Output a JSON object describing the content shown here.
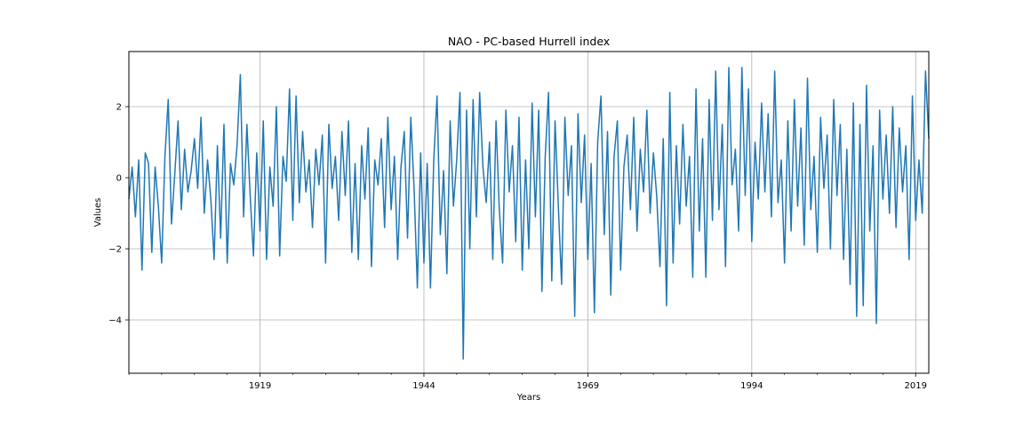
{
  "chart_data": {
    "type": "line",
    "title": "NAO - PC-based Hurrell index",
    "xlabel": "Years",
    "ylabel": "Values",
    "xlim": [
      1899,
      2021
    ],
    "ylim": [
      -5.5,
      3.55
    ],
    "x_ticks": [
      1919,
      1944,
      1969,
      1994,
      2019
    ],
    "x_tick_labels": [
      "1919",
      "1944",
      "1969",
      "1994",
      "2019"
    ],
    "y_ticks": [
      -4,
      -2,
      0,
      2
    ],
    "y_tick_labels": [
      "−4",
      "−2",
      "0",
      "2"
    ],
    "grid": true,
    "legend": "none",
    "line_color": "#1f77b4",
    "x": [
      1899.0,
      1899.5,
      1900.0,
      1900.5,
      1901.0,
      1901.5,
      1902.0,
      1902.5,
      1903.0,
      1903.5,
      1904.0,
      1904.5,
      1905.0,
      1905.5,
      1906.0,
      1906.5,
      1907.0,
      1907.5,
      1908.0,
      1908.5,
      1909.0,
      1909.5,
      1910.0,
      1910.5,
      1911.0,
      1911.5,
      1912.0,
      1912.5,
      1913.0,
      1913.5,
      1914.0,
      1914.5,
      1915.0,
      1915.5,
      1916.0,
      1916.5,
      1917.0,
      1917.5,
      1918.0,
      1918.5,
      1919.0,
      1919.5,
      1920.0,
      1920.5,
      1921.0,
      1921.5,
      1922.0,
      1922.5,
      1923.0,
      1923.5,
      1924.0,
      1924.5,
      1925.0,
      1925.5,
      1926.0,
      1926.5,
      1927.0,
      1927.5,
      1928.0,
      1928.5,
      1929.0,
      1929.5,
      1930.0,
      1930.5,
      1931.0,
      1931.5,
      1932.0,
      1932.5,
      1933.0,
      1933.5,
      1934.0,
      1934.5,
      1935.0,
      1935.5,
      1936.0,
      1936.5,
      1937.0,
      1937.5,
      1938.0,
      1938.5,
      1939.0,
      1939.5,
      1940.0,
      1940.5,
      1941.0,
      1941.5,
      1942.0,
      1942.5,
      1943.0,
      1943.5,
      1944.0,
      1944.5,
      1945.0,
      1945.5,
      1946.0,
      1946.5,
      1947.0,
      1947.5,
      1948.0,
      1948.5,
      1949.0,
      1949.5,
      1950.0,
      1950.5,
      1951.0,
      1951.5,
      1952.0,
      1952.5,
      1953.0,
      1953.5,
      1954.0,
      1954.5,
      1955.0,
      1955.5,
      1956.0,
      1956.5,
      1957.0,
      1957.5,
      1958.0,
      1958.5,
      1959.0,
      1959.5,
      1960.0,
      1960.5,
      1961.0,
      1961.5,
      1962.0,
      1962.5,
      1963.0,
      1963.5,
      1964.0,
      1964.5,
      1965.0,
      1965.5,
      1966.0,
      1966.5,
      1967.0,
      1967.5,
      1968.0,
      1968.5,
      1969.0,
      1969.5,
      1970.0,
      1970.5,
      1971.0,
      1971.5,
      1972.0,
      1972.5,
      1973.0,
      1973.5,
      1974.0,
      1974.5,
      1975.0,
      1975.5,
      1976.0,
      1976.5,
      1977.0,
      1977.5,
      1978.0,
      1978.5,
      1979.0,
      1979.5,
      1980.0,
      1980.5,
      1981.0,
      1981.5,
      1982.0,
      1982.5,
      1983.0,
      1983.5,
      1984.0,
      1984.5,
      1985.0,
      1985.5,
      1986.0,
      1986.5,
      1987.0,
      1987.5,
      1988.0,
      1988.5,
      1989.0,
      1989.5,
      1990.0,
      1990.5,
      1991.0,
      1991.5,
      1992.0,
      1992.5,
      1993.0,
      1993.5,
      1994.0,
      1994.5,
      1995.0,
      1995.5,
      1996.0,
      1996.5,
      1997.0,
      1997.5,
      1998.0,
      1998.5,
      1999.0,
      1999.5,
      2000.0,
      2000.5,
      2001.0,
      2001.5,
      2002.0,
      2002.5,
      2003.0,
      2003.5,
      2004.0,
      2004.5,
      2005.0,
      2005.5,
      2006.0,
      2006.5,
      2007.0,
      2007.5,
      2008.0,
      2008.5,
      2009.0,
      2009.5,
      2010.0,
      2010.5,
      2011.0,
      2011.5,
      2012.0,
      2012.5,
      2013.0,
      2013.5,
      2014.0,
      2014.5,
      2015.0,
      2015.5,
      2016.0,
      2016.5,
      2017.0,
      2017.5,
      2018.0,
      2018.5,
      2019.0,
      2019.5,
      2020.0,
      2020.5,
      2021.0
    ],
    "values": [
      -0.6,
      0.3,
      -1.1,
      0.5,
      -2.6,
      0.7,
      0.4,
      -2.1,
      0.3,
      -0.8,
      -2.4,
      0.6,
      2.2,
      -1.3,
      0.1,
      1.6,
      -0.9,
      0.8,
      -0.4,
      0.2,
      1.1,
      -0.3,
      1.7,
      -1.0,
      0.5,
      -0.6,
      -2.3,
      0.9,
      -1.7,
      1.5,
      -2.4,
      0.4,
      -0.2,
      0.9,
      2.9,
      -1.1,
      1.5,
      -0.5,
      -2.2,
      0.7,
      -1.5,
      1.6,
      -2.3,
      0.3,
      -0.8,
      2.0,
      -2.2,
      0.6,
      -0.1,
      2.5,
      -1.2,
      2.3,
      -0.7,
      1.3,
      -0.4,
      0.5,
      -1.4,
      0.8,
      -0.2,
      1.2,
      -2.4,
      1.5,
      -0.3,
      0.6,
      -1.2,
      1.3,
      -0.5,
      1.6,
      -2.1,
      0.4,
      -2.3,
      0.9,
      -0.6,
      1.4,
      -2.5,
      0.5,
      -0.2,
      1.1,
      -1.4,
      1.7,
      -0.9,
      0.6,
      -2.3,
      0.3,
      1.3,
      -1.7,
      1.7,
      -0.3,
      -3.1,
      0.7,
      -2.4,
      0.4,
      -3.1,
      0.5,
      2.3,
      -1.6,
      0.2,
      -2.7,
      1.6,
      -0.8,
      0.5,
      2.4,
      -5.1,
      1.9,
      -2.0,
      2.2,
      -1.1,
      2.4,
      0.3,
      -0.7,
      1.0,
      -2.3,
      1.6,
      -0.9,
      -2.4,
      1.9,
      -0.4,
      0.9,
      -1.8,
      1.7,
      -2.6,
      0.5,
      -2.0,
      2.1,
      -1.1,
      1.9,
      -3.2,
      0.6,
      2.4,
      -2.9,
      1.6,
      -0.8,
      -3.0,
      1.7,
      -0.5,
      0.9,
      -3.9,
      1.8,
      -0.7,
      1.2,
      -2.3,
      0.4,
      -3.8,
      1.0,
      2.3,
      -1.6,
      1.3,
      -3.3,
      0.6,
      1.6,
      -2.6,
      0.3,
      1.2,
      -0.9,
      1.7,
      -1.5,
      0.8,
      -0.4,
      1.9,
      -1.0,
      0.7,
      -0.5,
      -2.5,
      1.1,
      -3.6,
      2.4,
      -2.4,
      0.9,
      -1.3,
      1.5,
      -0.8,
      0.6,
      -2.8,
      2.5,
      -1.5,
      1.1,
      -2.8,
      2.2,
      -1.2,
      3.0,
      -0.9,
      1.5,
      -2.5,
      3.1,
      -0.2,
      0.8,
      -1.5,
      3.1,
      -0.5,
      2.5,
      -1.8,
      1.0,
      -0.6,
      2.1,
      -0.4,
      1.8,
      -1.1,
      3.0,
      -0.7,
      0.5,
      -2.4,
      1.6,
      -1.5,
      2.2,
      -0.8,
      1.4,
      -1.9,
      2.8,
      -0.9,
      0.6,
      -2.1,
      1.7,
      -0.3,
      1.2,
      -2.0,
      2.2,
      -0.5,
      1.5,
      -2.3,
      0.8,
      -3.0,
      2.1,
      -3.9,
      1.5,
      -3.6,
      2.6,
      -1.5,
      0.9,
      -4.1,
      1.9,
      -0.6,
      1.2,
      -1.0,
      2.0,
      -1.4,
      1.4,
      -0.4,
      0.9,
      -2.3,
      2.3,
      -1.2,
      0.5,
      -1.0,
      3.0,
      1.1
    ]
  }
}
